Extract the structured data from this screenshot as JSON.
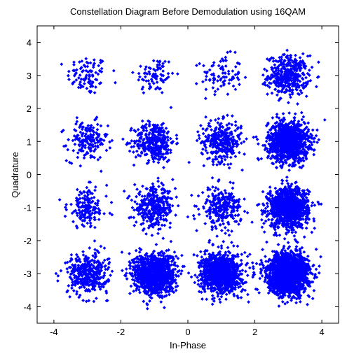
{
  "chart_data": {
    "type": "scatter",
    "title": "Constellation Diagram Before Demodulation using 16QAM",
    "xlabel": "In-Phase",
    "ylabel": "Quadrature",
    "xlim": [
      -4.5,
      4.5
    ],
    "ylim": [
      -4.5,
      4.5
    ],
    "xticks": [
      -4,
      -2,
      0,
      2,
      4
    ],
    "yticks": [
      4,
      3,
      2,
      1,
      0,
      -1,
      -2,
      -3,
      -4
    ],
    "xtick_labels": [
      "-4",
      "-2",
      "0",
      "2",
      "4"
    ],
    "ytick_labels": [
      "4",
      "3",
      "2",
      "1",
      "0",
      "-1",
      "-2",
      "-3",
      "-4"
    ],
    "grid": false,
    "marker": "diamond",
    "color": "#0000ff",
    "series": [
      {
        "clusters": [
          {
            "center": [
              -3,
              3
            ],
            "spread": 0.3,
            "count": 90
          },
          {
            "center": [
              -1,
              3
            ],
            "spread": 0.3,
            "count": 80
          },
          {
            "center": [
              1,
              3
            ],
            "spread": 0.3,
            "count": 90
          },
          {
            "center": [
              3,
              3
            ],
            "spread": 0.3,
            "count": 400
          },
          {
            "center": [
              -3,
              1
            ],
            "spread": 0.3,
            "count": 170
          },
          {
            "center": [
              -1,
              1
            ],
            "spread": 0.3,
            "count": 350
          },
          {
            "center": [
              1,
              1
            ],
            "spread": 0.3,
            "count": 320
          },
          {
            "center": [
              3,
              1
            ],
            "spread": 0.3,
            "count": 1100
          },
          {
            "center": [
              -3,
              -1
            ],
            "spread": 0.3,
            "count": 160
          },
          {
            "center": [
              -1,
              -1
            ],
            "spread": 0.3,
            "count": 340
          },
          {
            "center": [
              1,
              -1
            ],
            "spread": 0.3,
            "count": 250
          },
          {
            "center": [
              3,
              -1
            ],
            "spread": 0.3,
            "count": 1050
          },
          {
            "center": [
              -3,
              -3
            ],
            "spread": 0.3,
            "count": 380
          },
          {
            "center": [
              -1,
              -3
            ],
            "spread": 0.3,
            "count": 1150
          },
          {
            "center": [
              1,
              -3
            ],
            "spread": 0.3,
            "count": 1050
          },
          {
            "center": [
              3,
              -3
            ],
            "spread": 0.3,
            "count": 1900
          }
        ]
      }
    ]
  }
}
